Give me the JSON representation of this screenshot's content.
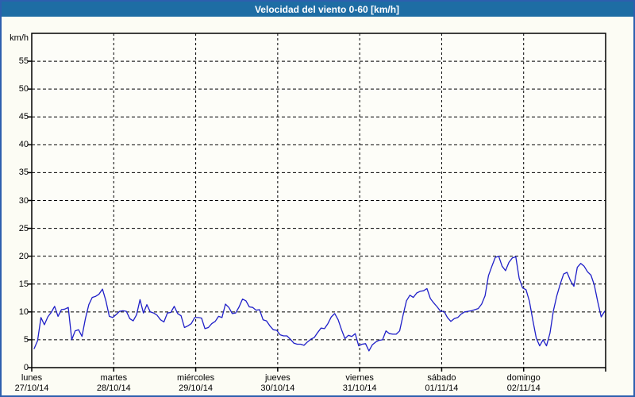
{
  "title": "Velocidad del viento 0-60 [km/h]",
  "colors": {
    "titlebar_bg": "#1e6da4",
    "titlebar_text": "#ffffff",
    "window_border": "#2d5fae",
    "background": "#fcfcf4",
    "plot_background": "#fdfdf8",
    "axis": "#000000",
    "grid": "#000000",
    "line": "#1f1fc8",
    "label_text": "#000000"
  },
  "y_axis": {
    "unit_label": "km/h",
    "min": 0,
    "max": 60,
    "tick_step": 5,
    "tick_labels": [
      "0",
      "5",
      "10",
      "15",
      "20",
      "25",
      "30",
      "35",
      "40",
      "45",
      "50",
      "55"
    ]
  },
  "x_axis": {
    "days": [
      {
        "name": "lunes",
        "date": "27/10/14"
      },
      {
        "name": "martes",
        "date": "28/10/14"
      },
      {
        "name": "miércoles",
        "date": "29/10/14"
      },
      {
        "name": "jueves",
        "date": "30/10/14"
      },
      {
        "name": "viernes",
        "date": "31/10/14"
      },
      {
        "name": "sábado",
        "date": "01/11/14"
      },
      {
        "name": "domingo",
        "date": "02/11/14"
      }
    ]
  },
  "chart_data": {
    "type": "line",
    "title": "Velocidad del viento 0-60 [km/h]",
    "xlabel": "",
    "ylabel": "km/h",
    "ylim": [
      0,
      60
    ],
    "x_unit": "hours",
    "x_range_hours": [
      0,
      168
    ],
    "samples_per_day": 24,
    "first_sample_hour": 0.7,
    "grid": true,
    "legend": "none",
    "series": [
      {
        "name": "velocidad del viento",
        "color": "#1f1fc8",
        "days": [
          {
            "name": "lunes",
            "date": "27/10/14",
            "values": [
              3.4,
              4.8,
              9.0,
              7.7,
              9.1,
              9.9,
              11.0,
              9.2,
              10.4,
              10.5,
              10.8,
              5.0,
              6.6,
              6.8,
              5.6,
              8.8,
              11.3,
              12.6,
              12.8,
              13.2,
              14.1,
              12.0,
              9.2,
              9.0
            ]
          },
          {
            "name": "martes",
            "date": "28/10/14",
            "values": [
              9.5,
              10.1,
              10.2,
              10.1,
              8.8,
              8.4,
              9.5,
              12.2,
              9.8,
              11.3,
              10.0,
              9.8,
              9.4,
              8.6,
              8.2,
              9.8,
              9.9,
              11.0,
              9.7,
              9.3,
              7.2,
              7.5,
              7.9,
              9.0
            ]
          },
          {
            "name": "miércoles",
            "date": "29/10/14",
            "values": [
              9.0,
              8.9,
              7.0,
              7.2,
              7.9,
              8.3,
              9.2,
              9.0,
              11.4,
              10.8,
              9.7,
              9.8,
              10.9,
              12.3,
              12.0,
              10.9,
              10.8,
              10.3,
              10.4,
              8.6,
              8.4,
              7.5,
              6.8,
              6.7
            ]
          },
          {
            "name": "jueves",
            "date": "30/10/14",
            "values": [
              5.9,
              5.7,
              5.7,
              5.1,
              4.4,
              4.2,
              4.2,
              4.0,
              4.6,
              5.1,
              5.4,
              6.3,
              7.1,
              7.0,
              7.9,
              9.1,
              9.7,
              8.6,
              6.8,
              5.2,
              5.8,
              5.6,
              6.1,
              3.9
            ]
          },
          {
            "name": "viernes",
            "date": "31/10/14",
            "values": [
              4.2,
              4.3,
              3.0,
              4.1,
              4.6,
              4.9,
              5.0,
              6.6,
              6.1,
              6.0,
              6.0,
              6.6,
              9.4,
              12.0,
              13.0,
              12.6,
              13.4,
              13.7,
              13.8,
              14.2,
              12.4,
              11.6,
              10.9,
              10.1
            ]
          },
          {
            "name": "sábado",
            "date": "01/11/14",
            "values": [
              10.1,
              9.0,
              8.3,
              8.8,
              9.0,
              9.6,
              10.0,
              10.1,
              10.2,
              10.4,
              10.6,
              11.4,
              12.9,
              16.5,
              18.2,
              19.8,
              20.0,
              18.2,
              17.4,
              18.9,
              19.7,
              19.9,
              16.0,
              14.3
            ]
          },
          {
            "name": "domingo",
            "date": "02/11/14",
            "values": [
              14.0,
              11.9,
              8.5,
              5.3,
              3.9,
              5.0,
              3.9,
              6.2,
              10.2,
              12.9,
              15.0,
              16.8,
              17.1,
              15.6,
              14.6,
              18.0,
              18.7,
              18.2,
              17.2,
              16.6,
              14.8,
              11.8,
              9.1,
              10.1
            ]
          }
        ]
      }
    ]
  }
}
